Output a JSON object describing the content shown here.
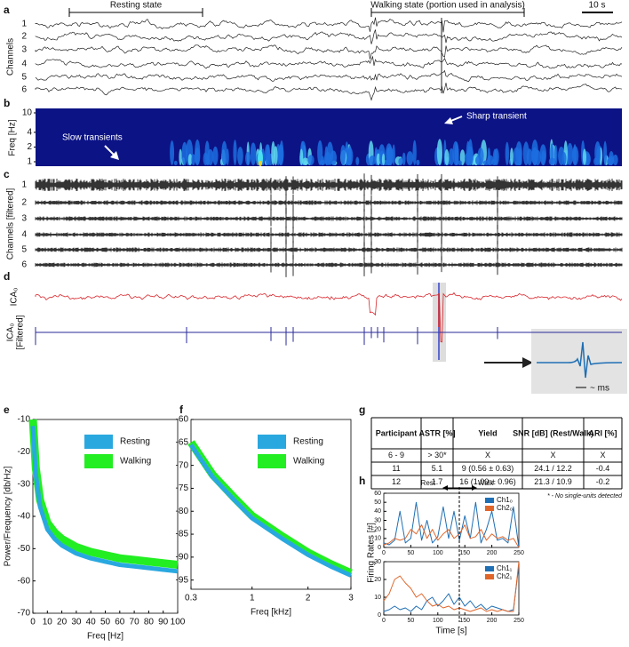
{
  "panel_labels": [
    "a",
    "b",
    "c",
    "d",
    "e",
    "f",
    "g",
    "h"
  ],
  "panel_a": {
    "resting": "Resting state",
    "walking": "Walking state (portion used in analysis)",
    "scale": "10 s",
    "ylabel": "Channels",
    "channels": [
      "1",
      "2",
      "3",
      "4",
      "5",
      "6"
    ]
  },
  "panel_b": {
    "ylabel": "Freq [Hz]",
    "ylim": [
      1,
      10
    ],
    "yticks": [
      1,
      2,
      4,
      10
    ],
    "log": true,
    "slow": "Slow transients",
    "sharp": "Sharp transient"
  },
  "panel_c": {
    "ylabel": "Channels [filtered]",
    "channels": [
      "1",
      "2",
      "3",
      "4",
      "5",
      "6"
    ]
  },
  "panel_d": {
    "ica": "ICA₀",
    "ica_filtered_1": "ICA₀",
    "ica_filtered_2": "[Filtered]",
    "inset": "~ ms"
  },
  "table": {
    "header": [
      "Participant",
      "ASTR [%]",
      "Yield",
      "SNR [dB] (Rest/Walk)",
      "ARI [%]"
    ],
    "rows": [
      [
        "6 - 9",
        "> 30*",
        "X",
        "X",
        "X"
      ],
      [
        "11",
        "5.1",
        "9  (0.56 ± 0.63)",
        "24.1 / 12.2",
        "-0.4"
      ],
      [
        "12",
        "1.7",
        "16 (1.00 ± 0.96)",
        "21.3 / 10.9",
        "-0.2"
      ]
    ],
    "footnote": "* - No single-units detected"
  },
  "panel_h": {
    "ylabel": "Firing Rates [#]",
    "rest": "Rest",
    "walk": "Walk"
  },
  "chart_data": [
    {
      "type": "line",
      "xlabel": "Freq [Hz]",
      "ylabel": "Power/Frequency [db/Hz]",
      "xlim": [
        0,
        100
      ],
      "ylim": [
        -70,
        -10
      ],
      "xticks": [
        0,
        10,
        20,
        30,
        40,
        50,
        60,
        70,
        80,
        90,
        100
      ],
      "yticks": [
        -70,
        -60,
        -50,
        -40,
        -30,
        -20,
        -10
      ],
      "legend": "upper right",
      "x": [
        0,
        2,
        5,
        10,
        15,
        20,
        30,
        40,
        50,
        60,
        70,
        80,
        90,
        100
      ],
      "series": [
        {
          "name": "Walking",
          "color": "#22ee22",
          "values": [
            -10,
            -25,
            -35,
            -42,
            -45,
            -47,
            -49.5,
            -51,
            -52,
            -53,
            -53.5,
            -54,
            -54.5,
            -55
          ]
        },
        {
          "name": "Resting",
          "color": "#29a8e0",
          "values": [
            -12,
            -27,
            -37,
            -44,
            -47,
            -49,
            -51.5,
            -53,
            -54,
            -55,
            -55.5,
            -56,
            -56.5,
            -57
          ]
        }
      ]
    },
    {
      "type": "line",
      "xlabel": "Freq [kHz]",
      "xscale": "sqrt",
      "xlim": [
        0.3,
        3
      ],
      "ylim": [
        -97,
        -60
      ],
      "xticks": [
        0.3,
        1,
        2,
        3
      ],
      "yticks": [
        -95,
        -90,
        -85,
        -80,
        -75,
        -70,
        -65,
        -60
      ],
      "legend": "upper right",
      "x": [
        0.3,
        0.5,
        0.75,
        1,
        1.5,
        2,
        2.5,
        3
      ],
      "series": [
        {
          "name": "Walking",
          "color": "#22ee22",
          "values": [
            -65,
            -72,
            -77,
            -81,
            -85.5,
            -89,
            -91.5,
            -93.5
          ]
        },
        {
          "name": "Resting",
          "color": "#29a8e0",
          "values": [
            -65.5,
            -72.5,
            -77.5,
            -81.5,
            -86,
            -89.5,
            -92,
            -94
          ]
        }
      ]
    },
    {
      "type": "line",
      "xlim": [
        0,
        250
      ],
      "ylim": [
        0,
        60
      ],
      "xticks": [
        0,
        50,
        100,
        150,
        200,
        250
      ],
      "yticks": [
        0,
        10,
        20,
        30,
        40,
        50,
        60
      ],
      "legend": "upper right",
      "x": [
        0,
        10,
        20,
        30,
        40,
        50,
        60,
        70,
        80,
        90,
        100,
        110,
        120,
        130,
        140,
        150,
        160,
        170,
        180,
        190,
        200,
        210,
        220,
        230,
        240,
        250
      ],
      "series": [
        {
          "name": "Ch1₀",
          "color": "#1f6fb4",
          "values": [
            5,
            3,
            8,
            40,
            5,
            10,
            50,
            8,
            30,
            5,
            12,
            45,
            10,
            40,
            8,
            35,
            10,
            50,
            5,
            20,
            40,
            8,
            10,
            5,
            45,
            0
          ]
        },
        {
          "name": "Ch2₀",
          "color": "#e0662a",
          "values": [
            3,
            5,
            10,
            8,
            10,
            20,
            15,
            25,
            10,
            20,
            8,
            15,
            20,
            10,
            15,
            25,
            10,
            12,
            20,
            8,
            15,
            10,
            12,
            8,
            10,
            0
          ]
        }
      ]
    },
    {
      "type": "line",
      "xlabel": "Time [s]",
      "xlim": [
        0,
        250
      ],
      "ylim": [
        0,
        30
      ],
      "xticks": [
        0,
        50,
        100,
        150,
        200,
        250
      ],
      "yticks": [
        0,
        10,
        20,
        30
      ],
      "legend": "upper right",
      "x": [
        0,
        10,
        20,
        30,
        40,
        50,
        60,
        70,
        80,
        90,
        100,
        110,
        120,
        130,
        140,
        150,
        160,
        170,
        180,
        190,
        200,
        210,
        220,
        230,
        240,
        250
      ],
      "series": [
        {
          "name": "Ch1₁",
          "color": "#1f6fb4",
          "values": [
            2,
            3,
            5,
            3,
            4,
            2,
            5,
            3,
            8,
            10,
            5,
            8,
            12,
            6,
            10,
            5,
            8,
            4,
            6,
            3,
            5,
            4,
            3,
            2,
            3,
            28
          ]
        },
        {
          "name": "Ch2₁",
          "color": "#e0662a",
          "values": [
            8,
            12,
            20,
            22,
            18,
            15,
            10,
            12,
            8,
            5,
            6,
            4,
            5,
            3,
            4,
            3,
            2,
            3,
            4,
            2,
            3,
            2,
            3,
            2,
            2,
            30
          ]
        }
      ]
    }
  ]
}
